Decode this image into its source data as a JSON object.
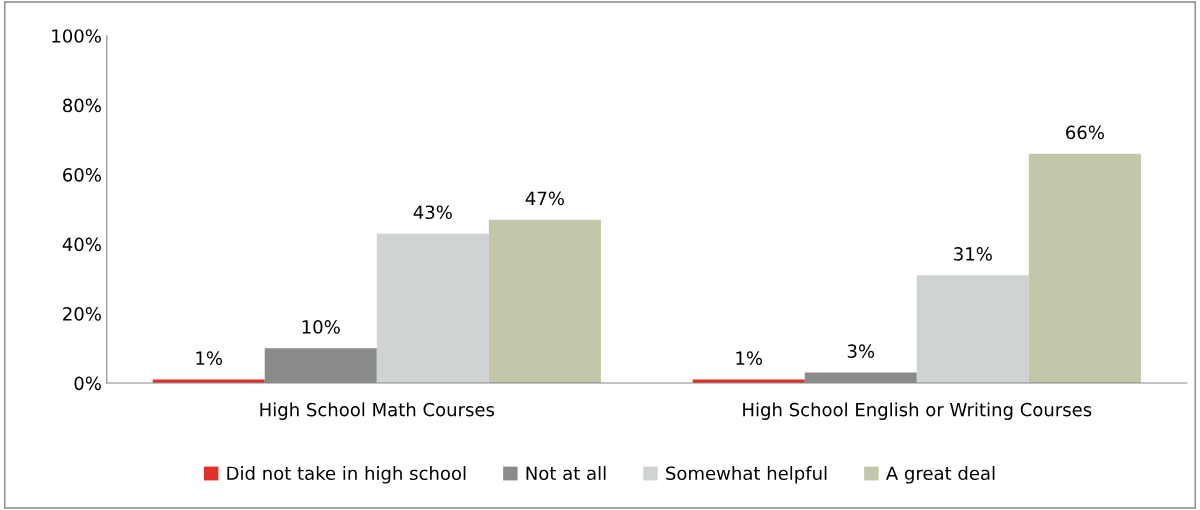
{
  "chart_data": {
    "type": "bar",
    "categories": [
      "High School Math Courses",
      "High School English or Writing Courses"
    ],
    "series": [
      {
        "name": "Did not take in high school",
        "color": "#e0302a",
        "values": [
          1,
          1
        ],
        "value_labels": [
          "1%",
          "1%"
        ]
      },
      {
        "name": "Not at all",
        "color": "#898b8b",
        "values": [
          10,
          3
        ],
        "value_labels": [
          "10%",
          "3%"
        ]
      },
      {
        "name": "Somewhat helpful",
        "color": "#d0d3d4",
        "values": [
          43,
          31
        ],
        "value_labels": [
          "43%",
          "31%"
        ]
      },
      {
        "name": "A great deal",
        "color": "#c3c6a8",
        "values": [
          47,
          66
        ],
        "value_labels": [
          "47%",
          "66%"
        ]
      }
    ],
    "ylim": [
      0,
      100
    ],
    "yticks": [
      {
        "value": 0,
        "label": "0%"
      },
      {
        "value": 20,
        "label": "20%"
      },
      {
        "value": 40,
        "label": "40%"
      },
      {
        "value": 60,
        "label": "60%"
      },
      {
        "value": 80,
        "label": "80%"
      },
      {
        "value": 100,
        "label": "100%"
      }
    ],
    "grid": false,
    "legend": "bottom"
  }
}
